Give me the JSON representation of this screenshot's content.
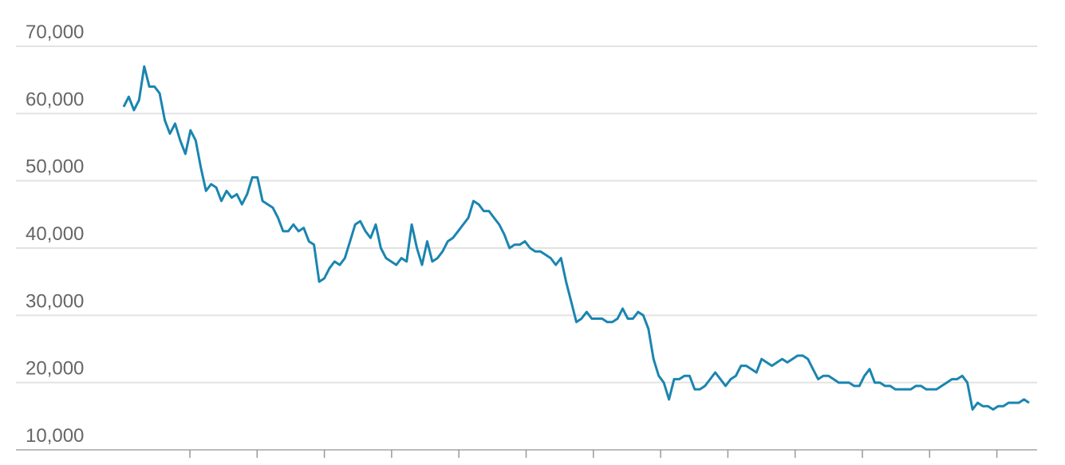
{
  "chart_data": {
    "type": "line",
    "series": [
      {
        "color": "#1a85b0",
        "values": [
          61000,
          62500,
          60500,
          62000,
          67000,
          64000,
          64000,
          63000,
          59000,
          57000,
          58500,
          56000,
          54000,
          57500,
          56000,
          52000,
          48500,
          49500,
          49000,
          47000,
          48500,
          47500,
          48000,
          46500,
          48000,
          50500,
          50500,
          47000,
          46500,
          46000,
          44500,
          42500,
          42500,
          43500,
          42500,
          43000,
          41000,
          40500,
          35000,
          35500,
          37000,
          38000,
          37500,
          38500,
          41000,
          43500,
          44000,
          42500,
          41500,
          43500,
          40000,
          38500,
          38000,
          37500,
          38500,
          38000,
          43500,
          40000,
          37500,
          41000,
          38000,
          38500,
          39500,
          41000,
          41500,
          42500,
          43500,
          44500,
          47000,
          46500,
          45500,
          45500,
          44500,
          43500,
          42000,
          40000,
          40500,
          40500,
          41000,
          40000,
          39500,
          39500,
          39000,
          38500,
          37500,
          38500,
          35000,
          32000,
          29000,
          29500,
          30500,
          29500,
          29500,
          29500,
          29000,
          29000,
          29500,
          31000,
          29500,
          29500,
          30500,
          30000,
          28000,
          23500,
          21000,
          20000,
          17500,
          20500,
          20500,
          21000,
          21000,
          19000,
          19000,
          19500,
          20500,
          21500,
          20500,
          19500,
          20500,
          21000,
          22500,
          22500,
          22000,
          21500,
          23500,
          23000,
          22500,
          23000,
          23500,
          23000,
          23500,
          24000,
          24000,
          23500,
          22000,
          20500,
          21000,
          21000,
          20500,
          20000,
          20000,
          20000,
          19500,
          19500,
          21000,
          22000,
          20000,
          20000,
          19500,
          19500,
          19000,
          19000,
          19000,
          19000,
          19500,
          19500,
          19000,
          19000,
          19000,
          19500,
          20000,
          20500,
          20500,
          21000,
          20000,
          16000,
          17000,
          16500,
          16500,
          16000,
          16500,
          16500,
          17000,
          17000,
          17000,
          17500,
          17000
        ]
      }
    ],
    "ylim": [
      10000,
      70000
    ],
    "yticks": [
      {
        "value": 10000,
        "label": "10,000"
      },
      {
        "value": 20000,
        "label": "20,000"
      },
      {
        "value": 30000,
        "label": "30,000"
      },
      {
        "value": 40000,
        "label": "40,000"
      },
      {
        "value": 50000,
        "label": "50,000"
      },
      {
        "value": 60000,
        "label": "60,000"
      },
      {
        "value": 70000,
        "label": "70,000"
      }
    ],
    "grid": true
  }
}
